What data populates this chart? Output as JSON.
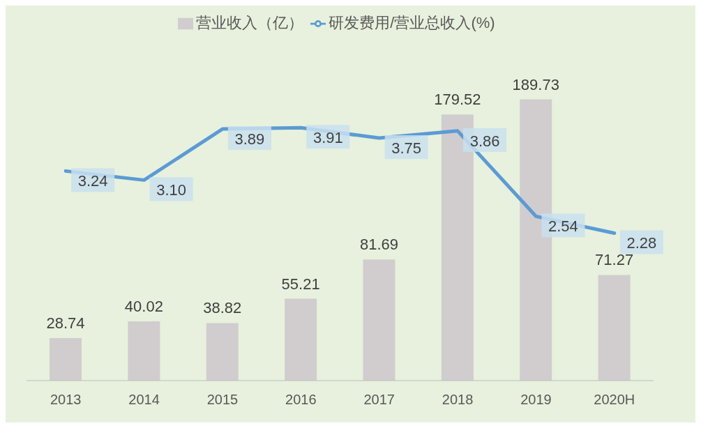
{
  "chart_data": {
    "type": "bar",
    "categories": [
      "2013",
      "2014",
      "2015",
      "2016",
      "2017",
      "2018",
      "2019",
      "2020H"
    ],
    "series": [
      {
        "name": "营业收入（亿）",
        "color": "#d1cdce",
        "values": [
          28.74,
          40.02,
          38.82,
          55.21,
          81.69,
          179.52,
          189.73,
          71.27
        ]
      },
      {
        "name": "研发费用/营业总收入(%)",
        "type": "line",
        "axis": "y2",
        "color": "#5b9bd5",
        "values": [
          3.24,
          3.1,
          3.89,
          3.91,
          3.75,
          3.86,
          2.54,
          2.28
        ],
        "value_labels": [
          "3.24",
          "3.10",
          "3.89",
          "3.91",
          "3.75",
          "3.86",
          "2.54",
          "2.28"
        ]
      }
    ],
    "data_labels": true,
    "legend": "top",
    "marker": "none",
    "line_style": "solid",
    "tick_labels": "x"
  }
}
